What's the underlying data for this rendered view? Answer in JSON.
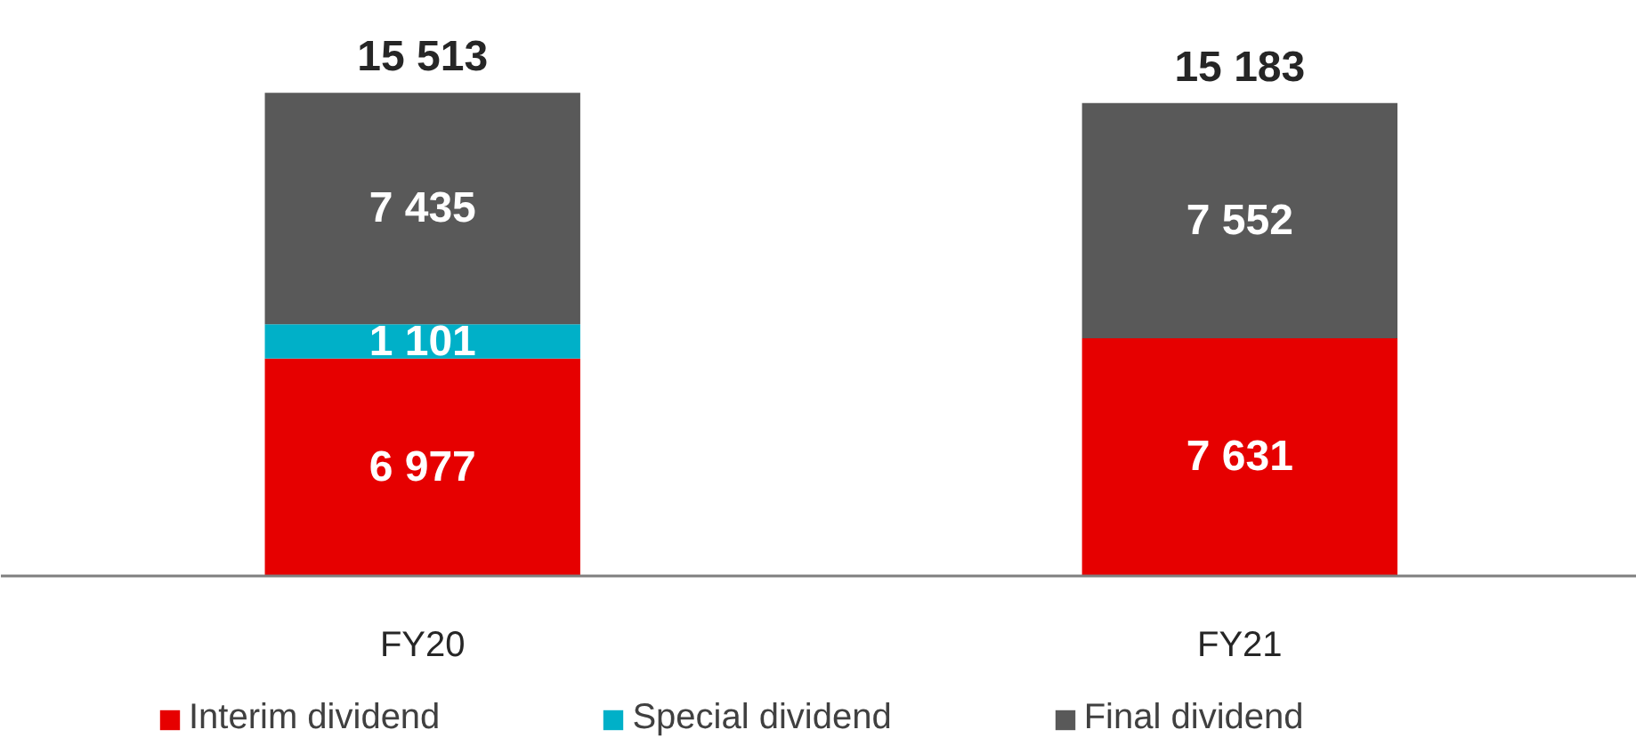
{
  "chart_data": {
    "type": "bar",
    "stacked": true,
    "categories": [
      "FY20",
      "FY21"
    ],
    "series": [
      {
        "name": "Interim dividend",
        "color": "#e60000",
        "values": [
          6977,
          7631
        ],
        "value_labels": [
          "6 977",
          "7 631"
        ]
      },
      {
        "name": "Special dividend",
        "color": "#00b0c8",
        "values": [
          1101,
          null
        ],
        "value_labels": [
          "1 101",
          null
        ]
      },
      {
        "name": "Final dividend",
        "color": "#595959",
        "values": [
          7435,
          7552
        ],
        "value_labels": [
          "7 435",
          "7 552"
        ]
      }
    ],
    "totals": [
      "15 513",
      "15 183"
    ],
    "legend": "bottom",
    "grid": false
  }
}
